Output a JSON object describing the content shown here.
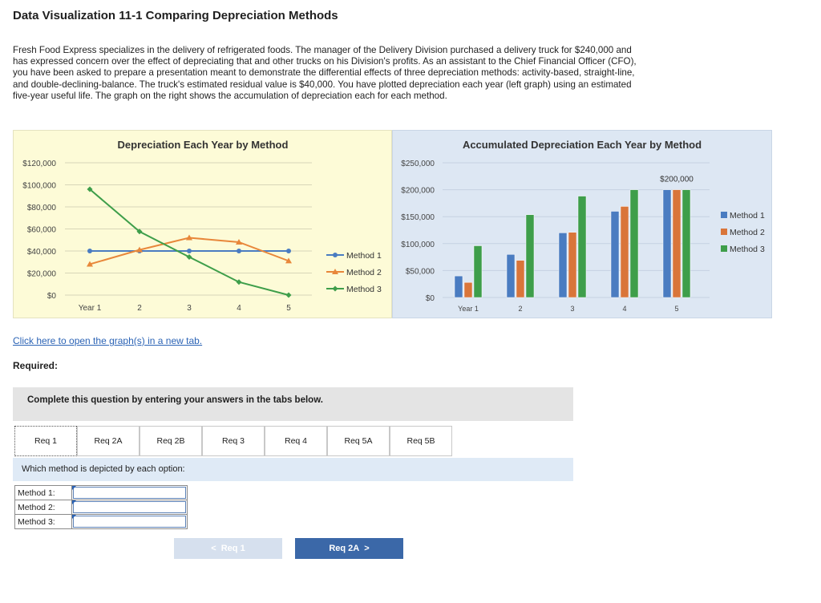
{
  "title": "Data Visualization 11-1 Comparing Depreciation Methods",
  "intro": "Fresh Food Express specializes in the delivery of refrigerated foods. The manager of the Delivery Division purchased a delivery truck for $240,000 and has expressed concern over the effect of depreciating that and other trucks on his Division's profits. As an assistant to the Chief Financial Officer (CFO), you have been asked to prepare a presentation meant to demonstrate the differential effects of three depreciation methods: activity-based, straight-line, and double-declining-balance. The truck's estimated residual value is $40,000. You have plotted depreciation each year (left graph) using an estimated five-year useful life. The graph on the right shows the accumulation of depreciation each for each method.",
  "link_text": "Click here to open the graph(s) in a new tab.",
  "required_label": "Required:",
  "instructions": "Complete this question by entering your answers in the tabs below.",
  "tabs": [
    "Req 1",
    "Req 2A",
    "Req 2B",
    "Req 3",
    "Req 4",
    "Req 5A",
    "Req 5B"
  ],
  "active_tab": "Req 1",
  "question": "Which method is depicted by each option:",
  "answer_rows": [
    {
      "label": "Method 1:",
      "value": ""
    },
    {
      "label": "Method 2:",
      "value": ""
    },
    {
      "label": "Method 3:",
      "value": ""
    }
  ],
  "nav": {
    "prev_label": "Req 1",
    "prev_icon": "<",
    "next_label": "Req 2A",
    "next_icon": ">"
  },
  "chart_data": [
    {
      "type": "line",
      "title": "Depreciation Each Year by Method",
      "categories": [
        "Year 1",
        "2",
        "3",
        "4",
        "5"
      ],
      "y_ticks": [
        "$0",
        "$20,000",
        "$40,000",
        "$60,000",
        "$80,000",
        "$100,000",
        "$120,000"
      ],
      "ylim": [
        0,
        120000
      ],
      "grid": true,
      "legend_position": "right",
      "background": "#fdfbd7",
      "series": [
        {
          "name": "Method 1",
          "color": "#4a7cc1",
          "marker": "circle",
          "values": [
            40000,
            40000,
            40000,
            40000,
            40000
          ]
        },
        {
          "name": "Method 2",
          "color": "#e8873a",
          "marker": "triangle",
          "values": [
            28000,
            41000,
            52000,
            48000,
            31000
          ]
        },
        {
          "name": "Method 3",
          "color": "#3e9e4a",
          "marker": "diamond",
          "values": [
            96000,
            57600,
            34560,
            11840,
            0
          ]
        }
      ]
    },
    {
      "type": "bar",
      "title": "Accumulated Depreciation Each Year by Method",
      "categories": [
        "Year 1",
        "2",
        "3",
        "4",
        "5"
      ],
      "y_ticks": [
        "$0",
        "$50,000",
        "$100,000",
        "$150,000",
        "$200,000",
        "$250,000"
      ],
      "ylim": [
        0,
        250000
      ],
      "grid": true,
      "legend_position": "right",
      "background": "#dde7f3",
      "data_label": "$200,000",
      "series": [
        {
          "name": "Method 1",
          "color": "#4a7cc1",
          "values": [
            40000,
            80000,
            120000,
            160000,
            200000
          ]
        },
        {
          "name": "Method 2",
          "color": "#d9753a",
          "values": [
            28000,
            69000,
            121000,
            169000,
            200000
          ]
        },
        {
          "name": "Method 3",
          "color": "#3e9e4a",
          "values": [
            96000,
            153600,
            188160,
            200000,
            200000
          ]
        }
      ]
    }
  ]
}
